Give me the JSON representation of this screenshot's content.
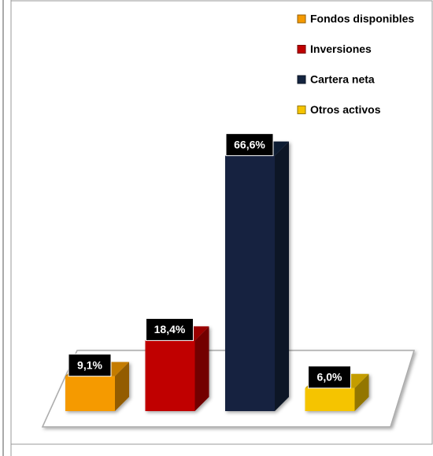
{
  "chart_data": {
    "type": "bar3d",
    "categories": [
      "Fondos disponibles",
      "Inversiones",
      "Cartera neta",
      "Otros activos"
    ],
    "values": [
      9.1,
      18.4,
      66.6,
      6.0
    ],
    "value_labels": [
      "9,1%",
      "18,4%",
      "66,6%",
      "6,0%"
    ],
    "colors": [
      "#f59a00",
      "#c00000",
      "#14243f",
      "#f5c400"
    ],
    "legend": "top-right"
  }
}
